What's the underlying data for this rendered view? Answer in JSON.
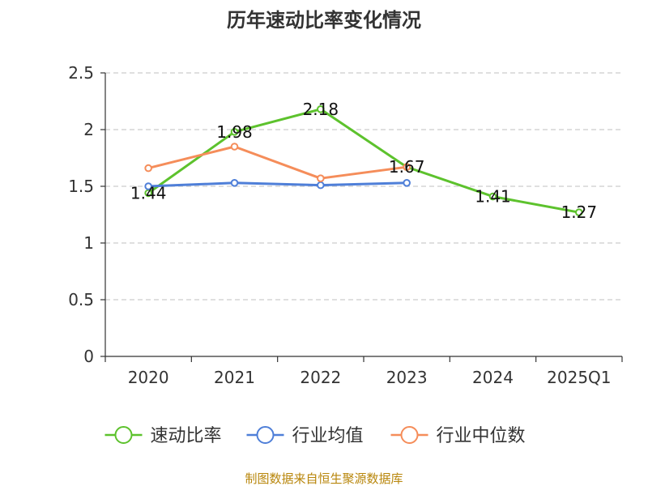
{
  "chart_data": {
    "type": "line",
    "title": "历年速动比率变化情况",
    "categories": [
      "2020",
      "2021",
      "2022",
      "2023",
      "2024",
      "2025Q1"
    ],
    "ylim": [
      0,
      2.5
    ],
    "yticks": [
      "0",
      "0.5",
      "1",
      "1.5",
      "2",
      "2.5"
    ],
    "grid": true,
    "legend_position": "bottom",
    "series": [
      {
        "name": "速动比率",
        "color": "#5dc22d",
        "values": [
          1.44,
          1.98,
          2.18,
          1.67,
          1.41,
          1.27
        ],
        "labels": [
          "1.44",
          "1.98",
          "2.18",
          "1.67",
          "1.41",
          "1.27"
        ]
      },
      {
        "name": "行业均值",
        "color": "#4f7fd8",
        "values": [
          1.5,
          1.53,
          1.51,
          1.53,
          null,
          null
        ]
      },
      {
        "name": "行业中位数",
        "color": "#f58d5a",
        "values": [
          1.66,
          1.85,
          1.57,
          1.67,
          null,
          null
        ]
      }
    ],
    "source": "制图数据来自恒生聚源数据库"
  }
}
